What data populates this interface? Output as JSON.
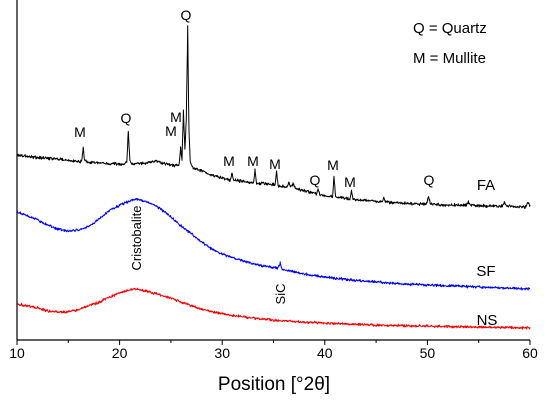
{
  "chart_data": {
    "type": "line",
    "title": "",
    "xlabel": "Position [°2θ]",
    "ylabel": "",
    "xlim": [
      10,
      60
    ],
    "ylim": [
      0,
      100
    ],
    "xticks": [
      10,
      20,
      30,
      40,
      50,
      60
    ],
    "grid": false,
    "legend": {
      "placement": "top-right",
      "entries": [
        "Q = Quartz",
        "M = Mullite"
      ]
    },
    "series": [
      {
        "name": "FA",
        "color": "#000000",
        "points": [
          [
            10.0,
            54.7
          ],
          [
            11.5,
            54.1
          ],
          [
            13.0,
            53.8
          ],
          [
            14.5,
            53.3
          ],
          [
            16.1,
            52.7
          ],
          [
            16.3,
            53.0
          ],
          [
            16.45,
            56.8
          ],
          [
            16.6,
            53.0
          ],
          [
            16.8,
            52.7
          ],
          [
            18.0,
            52.4
          ],
          [
            19.5,
            52.1
          ],
          [
            20.5,
            52.1
          ],
          [
            20.7,
            53.0
          ],
          [
            20.85,
            61.8
          ],
          [
            21.0,
            53.0
          ],
          [
            21.2,
            52.1
          ],
          [
            22.5,
            52.4
          ],
          [
            23.5,
            53.0
          ],
          [
            24.5,
            52.1
          ],
          [
            25.5,
            51.5
          ],
          [
            25.8,
            52.1
          ],
          [
            25.95,
            57.1
          ],
          [
            26.08,
            53.3
          ],
          [
            26.22,
            68.0
          ],
          [
            26.36,
            56.2
          ],
          [
            26.5,
            65.1
          ],
          [
            26.64,
            92.6
          ],
          [
            26.76,
            62.1
          ],
          [
            26.88,
            52.7
          ],
          [
            27.1,
            51.2
          ],
          [
            28.0,
            50.0
          ],
          [
            29.0,
            48.8
          ],
          [
            30.0,
            47.9
          ],
          [
            30.8,
            47.3
          ],
          [
            30.95,
            49.7
          ],
          [
            31.1,
            47.3
          ],
          [
            32.0,
            47.0
          ],
          [
            33.05,
            46.4
          ],
          [
            33.2,
            50.3
          ],
          [
            33.35,
            46.4
          ],
          [
            34.5,
            46.2
          ],
          [
            35.15,
            45.9
          ],
          [
            35.3,
            49.7
          ],
          [
            35.45,
            45.6
          ],
          [
            36.3,
            45.3
          ],
          [
            36.5,
            46.7
          ],
          [
            36.7,
            45.0
          ],
          [
            36.9,
            46.2
          ],
          [
            37.2,
            44.7
          ],
          [
            38.5,
            43.8
          ],
          [
            39.2,
            43.2
          ],
          [
            39.35,
            45.0
          ],
          [
            39.5,
            42.9
          ],
          [
            40.75,
            42.3
          ],
          [
            40.9,
            48.5
          ],
          [
            41.05,
            42.3
          ],
          [
            42.45,
            41.7
          ],
          [
            42.6,
            44.1
          ],
          [
            42.75,
            41.7
          ],
          [
            44.5,
            41.1
          ],
          [
            45.6,
            40.8
          ],
          [
            45.75,
            42.3
          ],
          [
            45.9,
            40.8
          ],
          [
            47.5,
            40.5
          ],
          [
            49.9,
            40.2
          ],
          [
            50.1,
            42.6
          ],
          [
            50.3,
            40.2
          ],
          [
            52.0,
            39.9
          ],
          [
            53.8,
            39.9
          ],
          [
            54.0,
            40.8
          ],
          [
            54.2,
            39.9
          ],
          [
            56.0,
            39.6
          ],
          [
            57.3,
            39.6
          ],
          [
            57.5,
            40.8
          ],
          [
            57.7,
            39.6
          ],
          [
            59.6,
            39.3
          ],
          [
            59.8,
            40.8
          ],
          [
            60.0,
            39.6
          ]
        ]
      },
      {
        "name": "SF",
        "color": "#0000ff",
        "points": [
          [
            10.0,
            37.9
          ],
          [
            11.0,
            36.7
          ],
          [
            12.0,
            35.5
          ],
          [
            13.0,
            34.0
          ],
          [
            14.0,
            32.8
          ],
          [
            15.0,
            32.2
          ],
          [
            16.0,
            32.5
          ],
          [
            17.0,
            33.7
          ],
          [
            18.0,
            35.8
          ],
          [
            19.0,
            38.2
          ],
          [
            20.0,
            39.9
          ],
          [
            21.0,
            41.1
          ],
          [
            21.5,
            41.7
          ],
          [
            22.0,
            41.4
          ],
          [
            23.0,
            40.5
          ],
          [
            24.0,
            38.8
          ],
          [
            25.0,
            36.4
          ],
          [
            26.0,
            33.7
          ],
          [
            27.0,
            31.4
          ],
          [
            28.0,
            29.0
          ],
          [
            29.0,
            26.9
          ],
          [
            30.0,
            25.4
          ],
          [
            32.0,
            23.4
          ],
          [
            34.0,
            21.9
          ],
          [
            35.45,
            21.3
          ],
          [
            35.65,
            22.8
          ],
          [
            35.85,
            21.0
          ],
          [
            38.0,
            19.5
          ],
          [
            40.0,
            18.6
          ],
          [
            42.5,
            17.8
          ],
          [
            45.0,
            17.2
          ],
          [
            47.5,
            16.6
          ],
          [
            50.0,
            16.3
          ],
          [
            52.5,
            16.0
          ],
          [
            55.0,
            15.7
          ],
          [
            57.5,
            15.4
          ],
          [
            60.0,
            15.1
          ]
        ]
      },
      {
        "name": "NS",
        "color": "#ff0000",
        "points": [
          [
            10.0,
            10.7
          ],
          [
            11.0,
            10.1
          ],
          [
            12.0,
            9.5
          ],
          [
            13.0,
            8.6
          ],
          [
            14.0,
            8.3
          ],
          [
            15.0,
            8.3
          ],
          [
            16.0,
            8.9
          ],
          [
            17.0,
            10.1
          ],
          [
            18.0,
            11.2
          ],
          [
            19.0,
            12.7
          ],
          [
            20.0,
            13.9
          ],
          [
            21.0,
            14.8
          ],
          [
            21.5,
            15.1
          ],
          [
            22.0,
            14.8
          ],
          [
            23.0,
            14.2
          ],
          [
            24.0,
            13.3
          ],
          [
            25.0,
            12.4
          ],
          [
            26.0,
            11.2
          ],
          [
            27.0,
            10.1
          ],
          [
            28.0,
            9.2
          ],
          [
            30.0,
            7.7
          ],
          [
            32.0,
            6.8
          ],
          [
            35.0,
            5.9
          ],
          [
            38.0,
            5.3
          ],
          [
            40.0,
            5.0
          ],
          [
            45.0,
            4.4
          ],
          [
            50.0,
            4.1
          ],
          [
            55.0,
            3.8
          ],
          [
            60.0,
            3.6
          ]
        ]
      }
    ],
    "annotations": [
      {
        "text": "M"
      },
      {
        "text": "Q"
      },
      {
        "text": "M"
      },
      {
        "text": "M"
      },
      {
        "text": "Q"
      },
      {
        "text": "M"
      },
      {
        "text": "M"
      },
      {
        "text": "M"
      },
      {
        "text": "Q"
      },
      {
        "text": "M"
      },
      {
        "text": "M"
      },
      {
        "text": "Q"
      },
      {
        "text": "Cristobalite"
      },
      {
        "text": "SiC"
      }
    ]
  }
}
